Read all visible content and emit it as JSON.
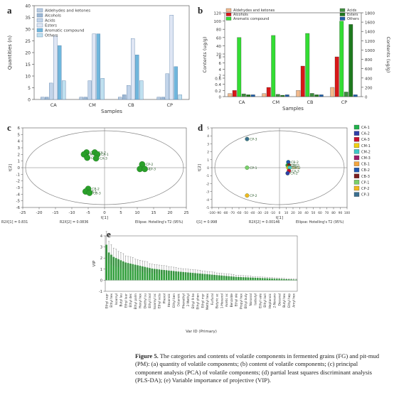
{
  "panel_labels": {
    "a": "a",
    "b": "b",
    "c": "c",
    "d": "d",
    "e": "e"
  },
  "caption": {
    "bold_lead": "Figure 5.",
    "text": " The categories and contents of volatile components in fermented grains (FG) and pit-mud (PM): (a) quantity of volatile components; (b) content of volatile components; (c) principal component analysis (PCA) of volatile components; (d) partial least squares discriminant analysis (PLS-DA); (e) Variable importance of projective (VIP)."
  },
  "chart_data": [
    {
      "id": "a",
      "type": "bar",
      "categories": [
        "CA",
        "CM",
        "CB",
        "CP"
      ],
      "xlabel": "Samples",
      "ylabel": "Quantities (n)",
      "ylim": [
        0,
        40
      ],
      "yticks": [
        0,
        5,
        10,
        15,
        20,
        25,
        30,
        35,
        40
      ],
      "legend_position": "top-left",
      "series": [
        {
          "name": "Aldehydes and ketones",
          "color": "#b9cbe0",
          "values": [
            1,
            1,
            1,
            1
          ]
        },
        {
          "name": "Alcohols",
          "color": "#9db7d3",
          "values": [
            1,
            1,
            2,
            1
          ]
        },
        {
          "name": "Acids",
          "color": "#c2d4ea",
          "values": [
            7,
            8,
            6,
            11
          ]
        },
        {
          "name": "Esters",
          "color": "#dfe6f4",
          "values": [
            27,
            28,
            26,
            36
          ]
        },
        {
          "name": "Aromatic compound",
          "color": "#6fb6dc",
          "values": [
            23,
            28,
            19,
            14
          ]
        },
        {
          "name": "Others",
          "color": "#bfe0ef",
          "values": [
            8,
            9,
            8,
            2
          ]
        }
      ]
    },
    {
      "id": "b",
      "type": "bar",
      "categories": [
        "CA",
        "CM",
        "CB",
        "CP"
      ],
      "xlabel": "Samples",
      "ylabel_left": "Contents (ug/g)",
      "ylabel_right": "Contents (ug/g)",
      "ylim_left": [
        0,
        120
      ],
      "ylim_right": [
        0,
        1800
      ],
      "yticks_left": [
        0,
        0.2,
        0.4,
        0.6,
        2,
        4,
        6,
        8,
        20,
        40,
        60,
        80,
        100,
        120
      ],
      "yticks_right": [
        0,
        200,
        400,
        600,
        800,
        1000,
        1200,
        1400,
        1600,
        1800
      ],
      "series": [
        {
          "name": "Aldehydes and ketones",
          "color": "#f2b98c",
          "axis": "left",
          "values": [
            0.1,
            0.1,
            0.2,
            0.3
          ]
        },
        {
          "name": "Alcohols",
          "color": "#d81818",
          "axis": "left",
          "values": [
            0.2,
            0.3,
            5.0,
            12.0
          ]
        },
        {
          "name": "Aromatic compound",
          "color": "#33dd33",
          "axis": "left",
          "values": [
            60,
            65,
            70,
            100
          ]
        },
        {
          "name": "Acids",
          "color": "#3f8f3f",
          "axis": "right",
          "values": [
            60,
            50,
            70,
            100
          ]
        },
        {
          "name": "Esters",
          "color": "#1e7a1e",
          "axis": "right",
          "values": [
            40,
            30,
            40,
            1550
          ]
        },
        {
          "name": "Others",
          "color": "#1f5fa8",
          "axis": "right",
          "values": [
            40,
            40,
            40,
            40
          ]
        }
      ]
    },
    {
      "id": "c",
      "type": "scatter",
      "xlim": [
        -25,
        25
      ],
      "ylim": [
        -6,
        6
      ],
      "xticks": [
        -25,
        -20,
        -15,
        -10,
        -5,
        0,
        5,
        10,
        15,
        20,
        25
      ],
      "yticks": [
        -6,
        -5,
        -4,
        -3,
        -2,
        -1,
        0,
        1,
        2,
        3,
        4,
        5,
        6
      ],
      "xlabel": "t[1]",
      "ylabel": "t[2]",
      "footer_left": "R2X[1] = 0.831",
      "footer_mid": "R2X[2] = 0.0836",
      "footer_right": "Ellipse: Hotelling's T2 (95%)",
      "color": "#2aa02a",
      "points": [
        {
          "label": "CM-2",
          "x": -5.5,
          "y": 2.3
        },
        {
          "label": "CM-1",
          "x": -6.3,
          "y": 2.0
        },
        {
          "label": "CM-3",
          "x": -5.3,
          "y": 1.5
        },
        {
          "label": "CA-2",
          "x": -3.0,
          "y": 2.3
        },
        {
          "label": "CA-1",
          "x": -2.2,
          "y": 2.0
        },
        {
          "label": "CA-3",
          "x": -2.6,
          "y": 1.4
        },
        {
          "label": "CP-2",
          "x": 11.5,
          "y": 0.5
        },
        {
          "label": "CP-1",
          "x": 10.8,
          "y": -0.2
        },
        {
          "label": "CP-3",
          "x": 12.3,
          "y": -0.2
        },
        {
          "label": "CB-2",
          "x": -5.0,
          "y": -3.2
        },
        {
          "label": "CB-1",
          "x": -5.8,
          "y": -3.6
        },
        {
          "label": "CB-3",
          "x": -4.6,
          "y": -3.8
        }
      ]
    },
    {
      "id": "d",
      "type": "scatter",
      "xlim": [
        -100,
        100
      ],
      "ylim": [
        -5,
        5
      ],
      "xticks": [
        -100,
        -90,
        -80,
        -70,
        -60,
        -50,
        -40,
        -30,
        -20,
        -10,
        0,
        10,
        20,
        30,
        40,
        50,
        60,
        70,
        80,
        90,
        100
      ],
      "yticks": [
        -5,
        -4,
        -3,
        -2,
        -1,
        0,
        1,
        2,
        3,
        4,
        5
      ],
      "xlabel": "t[1]",
      "ylabel": "t[2]",
      "footer_left": "R2X[1] = 0.998",
      "footer_mid": "R2X[2] = 0.00146",
      "footer_right": "Ellipse: Hotelling's T2 (95%)",
      "legend_position": "right",
      "legend": [
        {
          "label": "CA-1",
          "color": "#22b14c"
        },
        {
          "label": "CA-2",
          "color": "#2f3fa8"
        },
        {
          "label": "CA-3",
          "color": "#c8102e"
        },
        {
          "label": "CM-1",
          "color": "#f0d010"
        },
        {
          "label": "CM-2",
          "color": "#3ec8c8"
        },
        {
          "label": "CM-3",
          "color": "#9c1c6b"
        },
        {
          "label": "CB-1",
          "color": "#f3a540"
        },
        {
          "label": "CB-2",
          "color": "#1f56b0"
        },
        {
          "label": "CB-3",
          "color": "#7a1f1f"
        },
        {
          "label": "CP-1",
          "color": "#7bd06b"
        },
        {
          "label": "CP-2",
          "color": "#f2b820"
        },
        {
          "label": "CP-3",
          "color": "#3b6f8f"
        }
      ],
      "points": [
        {
          "label": "CP-3",
          "x": -48,
          "y": 3.6,
          "color": "#3b6f8f"
        },
        {
          "label": "CP-1",
          "x": -48,
          "y": 0.0,
          "color": "#7bd06b"
        },
        {
          "label": "CP-2",
          "x": -48,
          "y": -3.5,
          "color": "#f2b820"
        },
        {
          "label": "CB-2",
          "x": 13,
          "y": 0.7,
          "color": "#1f56b0"
        },
        {
          "label": "CA-1",
          "x": 12,
          "y": 0.3,
          "color": "#22b14c"
        },
        {
          "label": "CB-3",
          "x": 14,
          "y": 0.3,
          "color": "#7a1f1f"
        },
        {
          "label": "CM-1",
          "x": 13,
          "y": 0.0,
          "color": "#f0d010"
        },
        {
          "label": "CM-2",
          "x": 15,
          "y": 0.0,
          "color": "#3ec8c8"
        },
        {
          "label": "CA-3",
          "x": 14,
          "y": -0.4,
          "color": "#c8102e"
        },
        {
          "label": "CA-2",
          "x": 12,
          "y": -0.7,
          "color": "#2f3fa8"
        }
      ]
    },
    {
      "id": "e",
      "type": "bar",
      "xlabel": "Var ID (Primary)",
      "ylabel": "VIP",
      "ylim": [
        -1,
        4
      ],
      "yticks": [
        -1,
        0,
        1,
        2,
        3,
        4
      ],
      "color": "#2f9e3a",
      "values": [
        3.2,
        2.5,
        2.3,
        2.1,
        2.0,
        1.9,
        1.8,
        1.7,
        1.6,
        1.55,
        1.5,
        1.45,
        1.4,
        1.35,
        1.3,
        1.25,
        1.2,
        1.15,
        1.1,
        1.05,
        1.02,
        1.0,
        0.97,
        0.94,
        0.92,
        0.9,
        0.87,
        0.85,
        0.83,
        0.8,
        0.78,
        0.76,
        0.74,
        0.72,
        0.7,
        0.68,
        0.66,
        0.64,
        0.62,
        0.6,
        0.58,
        0.56,
        0.54,
        0.52,
        0.5,
        0.48,
        0.46,
        0.44,
        0.42,
        0.4,
        0.38,
        0.36,
        0.34,
        0.32,
        0.3,
        0.29,
        0.28,
        0.27,
        0.26,
        0.25,
        0.24,
        0.23,
        0.22,
        0.21,
        0.2,
        0.19,
        0.18,
        0.17,
        0.16,
        0.15,
        0.14,
        0.13,
        0.12,
        0.11,
        0.1,
        0.09,
        0.08,
        0.07,
        0.06,
        0.05
      ],
      "errors": [
        1.2,
        1.0,
        0.9,
        0.8,
        0.8,
        0.7,
        0.7,
        0.7,
        0.6,
        0.6,
        0.6,
        0.6,
        0.5,
        0.5,
        0.5,
        0.5,
        0.5,
        0.5,
        0.4,
        0.4,
        0.4,
        0.4,
        0.4,
        0.4,
        0.4,
        0.4,
        0.35,
        0.35,
        0.35,
        0.35,
        0.3,
        0.3,
        0.3,
        0.3,
        0.3,
        0.3,
        0.3,
        0.3,
        0.3,
        0.3,
        0.25,
        0.25,
        0.25,
        0.25,
        0.25,
        0.25,
        0.2,
        0.2,
        0.2,
        0.2,
        0.2,
        0.2,
        0.2,
        0.2,
        0.15,
        0.15,
        0.15,
        0.15,
        0.15,
        0.15,
        0.15,
        0.1,
        0.1,
        0.1,
        0.1,
        0.1,
        0.1,
        0.1,
        0.1,
        0.1,
        0.08,
        0.08,
        0.08,
        0.08,
        0.08,
        0.06,
        0.06,
        0.06,
        0.05,
        0.05
      ],
      "tick_labels": [
        "Ethyl capr",
        "Ethyl hex",
        "Isoamyl",
        "Butyl lau",
        "Ethyl laur",
        "Ethyl dec",
        "Ethyl palm",
        "Hexyl hex",
        "Diethyl su",
        "Ethyl linol",
        "Isoamyl ac",
        "Ethyl octa",
        "Phenol",
        "Hexanoic",
        "Ethyl ben",
        "Octanoic",
        "Phenethyl",
        "2-Methyl",
        "Ethyl 9-he",
        "Ethyl phen",
        "Ethyl myr",
        "Methyl hex",
        "Furfural",
        "Butyric ac",
        "1-Hexanol",
        "Acetic ac",
        "Benzalde",
        "Ethyl ole",
        "Propyl hex",
        "Ethyl buty",
        "Nonanal",
        "Isobutyl",
        "Ethyl vale",
        "Ethyl lact",
        "Heptanoic",
        "2-Nonano",
        "Decanal",
        "Butyl hex",
        "Ethyl hep",
        "Amyl hex"
      ]
    }
  ]
}
